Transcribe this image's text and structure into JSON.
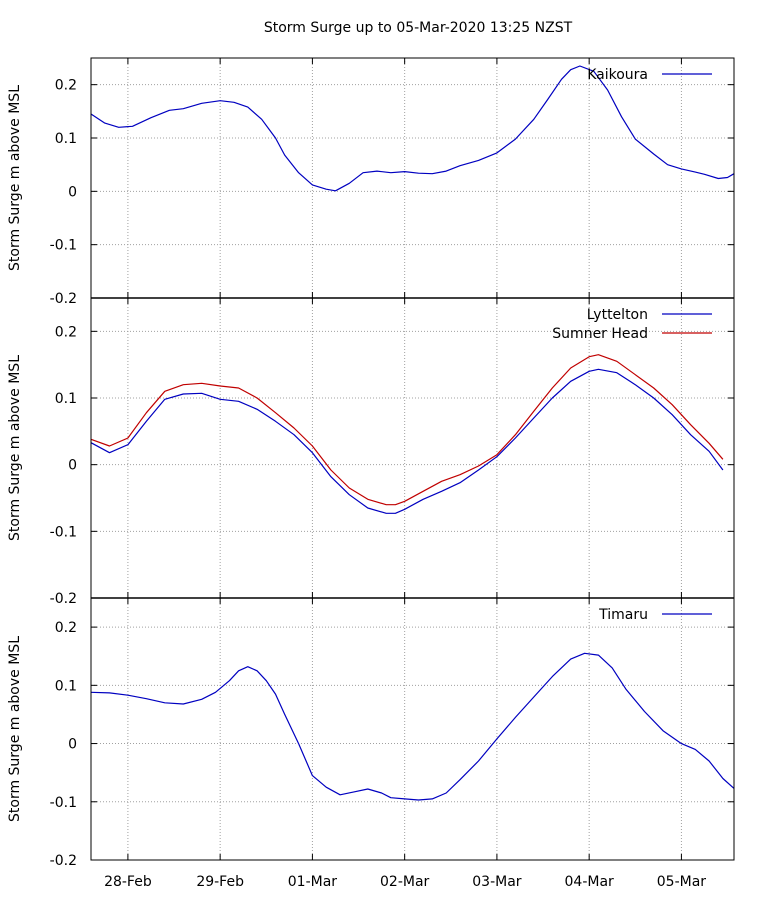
{
  "title": "Storm Surge up to  05-Mar-2020 13:25 NZST",
  "chart_data": {
    "type": "line",
    "title": "Storm Surge up to  05-Mar-2020 13:25 NZST",
    "x_ticks": [
      "28-Feb",
      "29-Feb",
      "01-Mar",
      "02-Mar",
      "03-Mar",
      "04-Mar",
      "05-Mar"
    ],
    "x_tick_pos": [
      1,
      2,
      3,
      4,
      5,
      6,
      7
    ],
    "xlim": [
      0.6,
      7.57
    ],
    "grid": true,
    "legend_position": "top-right",
    "panels": [
      {
        "ylabel": "Storm Surge m above MSL",
        "ylim": [
          -0.2,
          0.25
        ],
        "yticks": [
          "0.2",
          "0.1",
          "0",
          "-0.1",
          "-0.2"
        ],
        "ytick_values": [
          0.2,
          0.1,
          0,
          -0.1,
          -0.2
        ],
        "series": [
          {
            "name": "Kaikoura",
            "color": "#0000c0",
            "x": [
              0.6,
              0.75,
              0.9,
              1.05,
              1.25,
              1.45,
              1.6,
              1.8,
              2.0,
              2.15,
              2.3,
              2.45,
              2.6,
              2.7,
              2.85,
              3.0,
              3.15,
              3.25,
              3.4,
              3.55,
              3.7,
              3.85,
              4.0,
              4.15,
              4.3,
              4.45,
              4.6,
              4.8,
              5.0,
              5.2,
              5.4,
              5.55,
              5.7,
              5.8,
              5.9,
              6.05,
              6.2,
              6.35,
              6.5,
              6.7,
              6.85,
              7.0,
              7.15,
              7.25,
              7.4,
              7.5,
              7.57
            ],
            "y": [
              0.145,
              0.128,
              0.12,
              0.122,
              0.138,
              0.152,
              0.155,
              0.165,
              0.17,
              0.167,
              0.158,
              0.135,
              0.1,
              0.068,
              0.035,
              0.012,
              0.004,
              0.001,
              0.015,
              0.035,
              0.038,
              0.035,
              0.037,
              0.034,
              0.033,
              0.038,
              0.048,
              0.058,
              0.072,
              0.098,
              0.135,
              0.172,
              0.21,
              0.228,
              0.235,
              0.225,
              0.19,
              0.14,
              0.098,
              0.07,
              0.05,
              0.042,
              0.036,
              0.032,
              0.024,
              0.026,
              0.033
            ]
          }
        ]
      },
      {
        "ylabel": "Storm Surge m above MSL",
        "ylim": [
          -0.2,
          0.25
        ],
        "yticks": [
          "0.2",
          "0.1",
          "0",
          "-0.1",
          "-0.2"
        ],
        "ytick_values": [
          0.2,
          0.1,
          0,
          -0.1,
          -0.2
        ],
        "series": [
          {
            "name": "Lyttelton",
            "color": "#0000c0",
            "x": [
              0.6,
              0.8,
              1.0,
              1.2,
              1.4,
              1.6,
              1.8,
              2.0,
              2.2,
              2.4,
              2.6,
              2.8,
              3.0,
              3.2,
              3.4,
              3.6,
              3.8,
              3.9,
              4.0,
              4.2,
              4.4,
              4.6,
              4.8,
              5.0,
              5.2,
              5.4,
              5.6,
              5.8,
              6.0,
              6.1,
              6.3,
              6.5,
              6.7,
              6.9,
              7.1,
              7.3,
              7.45
            ],
            "y": [
              0.033,
              0.018,
              0.03,
              0.065,
              0.098,
              0.106,
              0.107,
              0.098,
              0.095,
              0.083,
              0.065,
              0.045,
              0.018,
              -0.018,
              -0.045,
              -0.065,
              -0.073,
              -0.073,
              -0.067,
              -0.052,
              -0.04,
              -0.027,
              -0.008,
              0.012,
              0.04,
              0.07,
              0.1,
              0.125,
              0.14,
              0.143,
              0.138,
              0.12,
              0.1,
              0.075,
              0.045,
              0.02,
              -0.008
            ]
          },
          {
            "name": "Sumner Head",
            "color": "#c00000",
            "x": [
              0.6,
              0.8,
              1.0,
              1.2,
              1.4,
              1.6,
              1.8,
              2.0,
              2.2,
              2.4,
              2.6,
              2.8,
              3.0,
              3.2,
              3.4,
              3.6,
              3.8,
              3.9,
              4.0,
              4.2,
              4.4,
              4.6,
              4.8,
              5.0,
              5.2,
              5.4,
              5.6,
              5.8,
              6.0,
              6.1,
              6.3,
              6.5,
              6.7,
              6.9,
              7.1,
              7.3,
              7.45
            ],
            "y": [
              0.038,
              0.028,
              0.04,
              0.078,
              0.11,
              0.12,
              0.122,
              0.118,
              0.115,
              0.1,
              0.078,
              0.055,
              0.028,
              -0.008,
              -0.035,
              -0.052,
              -0.06,
              -0.06,
              -0.055,
              -0.04,
              -0.025,
              -0.015,
              -0.002,
              0.015,
              0.045,
              0.08,
              0.115,
              0.145,
              0.162,
              0.165,
              0.155,
              0.135,
              0.115,
              0.09,
              0.06,
              0.032,
              0.008
            ]
          }
        ]
      },
      {
        "ylabel": "Storm Surge m above MSL",
        "ylim": [
          -0.2,
          0.25
        ],
        "yticks": [
          "0.2",
          "0.1",
          "0",
          "-0.1",
          "-0.2"
        ],
        "ytick_values": [
          0.2,
          0.1,
          0,
          -0.1,
          -0.2
        ],
        "series": [
          {
            "name": "Timaru",
            "color": "#0000c0",
            "x": [
              0.6,
              0.8,
              1.0,
              1.2,
              1.4,
              1.6,
              1.8,
              1.95,
              2.1,
              2.2,
              2.3,
              2.4,
              2.5,
              2.6,
              2.7,
              2.85,
              3.0,
              3.15,
              3.3,
              3.45,
              3.6,
              3.75,
              3.85,
              4.0,
              4.15,
              4.3,
              4.45,
              4.6,
              4.8,
              5.0,
              5.2,
              5.4,
              5.6,
              5.8,
              5.95,
              6.1,
              6.25,
              6.4,
              6.6,
              6.8,
              7.0,
              7.15,
              7.3,
              7.45,
              7.57
            ],
            "y": [
              0.088,
              0.087,
              0.083,
              0.077,
              0.07,
              0.068,
              0.076,
              0.088,
              0.108,
              0.125,
              0.132,
              0.125,
              0.108,
              0.085,
              0.05,
              0.0,
              -0.055,
              -0.075,
              -0.088,
              -0.083,
              -0.078,
              -0.085,
              -0.093,
              -0.095,
              -0.097,
              -0.095,
              -0.085,
              -0.062,
              -0.03,
              0.008,
              0.045,
              0.08,
              0.115,
              0.145,
              0.155,
              0.152,
              0.13,
              0.093,
              0.055,
              0.022,
              0.0,
              -0.01,
              -0.03,
              -0.06,
              -0.077
            ]
          }
        ]
      }
    ]
  }
}
